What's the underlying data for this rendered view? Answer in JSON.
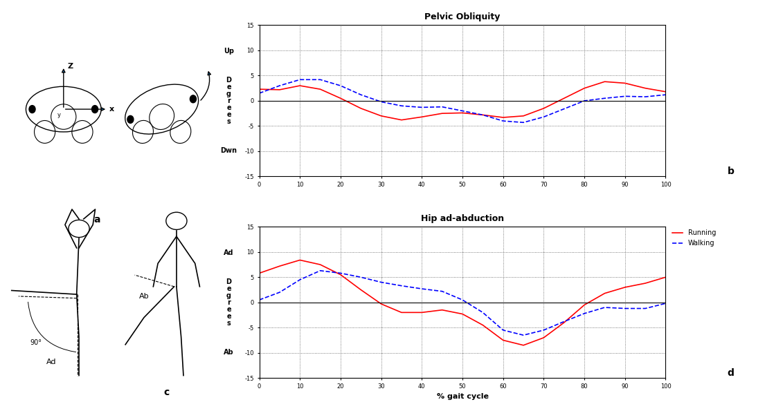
{
  "chart_data": [
    {
      "type": "line",
      "title": "Pelvic Obliquity",
      "panel": "b",
      "ylabel": "Degrees",
      "ylabel_top": "Up",
      "ylabel_bottom": "Dwn",
      "x": [
        0,
        5,
        10,
        15,
        20,
        25,
        30,
        35,
        40,
        45,
        50,
        55,
        60,
        65,
        70,
        75,
        80,
        85,
        90,
        95,
        100
      ],
      "series": [
        {
          "name": "Running",
          "color": "#ff0000",
          "line_style": "solid",
          "values": [
            2.3,
            2.2,
            3.0,
            2.3,
            0.5,
            -1.5,
            -3.0,
            -3.8,
            -3.2,
            -2.5,
            -2.4,
            -2.8,
            -3.3,
            -3.0,
            -1.5,
            0.5,
            2.5,
            3.8,
            3.5,
            2.5,
            1.8
          ]
        },
        {
          "name": "Walking",
          "color": "#0000ff",
          "line_style": "dashed",
          "values": [
            1.5,
            3.0,
            4.2,
            4.2,
            3.0,
            1.2,
            -0.2,
            -1.0,
            -1.3,
            -1.2,
            -2.0,
            -2.8,
            -4.0,
            -4.3,
            -3.2,
            -1.6,
            0.0,
            0.5,
            0.9,
            0.8,
            1.2
          ]
        }
      ],
      "xlim": [
        0,
        100
      ],
      "xticks": [
        0,
        10,
        20,
        30,
        40,
        50,
        60,
        70,
        80,
        90,
        100
      ],
      "ylim": [
        -15,
        15
      ],
      "yticks": [
        -15,
        -10,
        -5,
        0,
        5,
        10,
        15
      ],
      "grid": true
    },
    {
      "type": "line",
      "title": "Hip ad-abduction",
      "panel": "d",
      "xlabel": "% gait cycle",
      "ylabel": "Degrees",
      "ylabel_top": "Ad",
      "ylabel_bottom": "Ab",
      "x": [
        0,
        5,
        10,
        15,
        20,
        25,
        30,
        35,
        40,
        45,
        50,
        55,
        60,
        65,
        70,
        75,
        80,
        85,
        90,
        95,
        100
      ],
      "series": [
        {
          "name": "Running",
          "color": "#ff0000",
          "line_style": "solid",
          "values": [
            5.8,
            7.2,
            8.4,
            7.5,
            5.5,
            2.5,
            -0.3,
            -2.0,
            -2.0,
            -1.5,
            -2.3,
            -4.5,
            -7.5,
            -8.5,
            -7.0,
            -4.0,
            -0.5,
            1.8,
            3.0,
            3.8,
            5.0
          ]
        },
        {
          "name": "Walking",
          "color": "#0000ff",
          "line_style": "dashed",
          "values": [
            0.5,
            2.0,
            4.5,
            6.3,
            5.8,
            5.0,
            4.0,
            3.3,
            2.7,
            2.2,
            0.5,
            -2.0,
            -5.5,
            -6.5,
            -5.5,
            -3.8,
            -2.2,
            -1.0,
            -1.2,
            -1.2,
            -0.2
          ]
        }
      ],
      "xlim": [
        0,
        100
      ],
      "xticks": [
        0,
        10,
        20,
        30,
        40,
        50,
        60,
        70,
        80,
        90,
        100
      ],
      "ylim": [
        -15,
        15
      ],
      "yticks": [
        -15,
        -10,
        -5,
        0,
        5,
        10,
        15
      ],
      "grid": true,
      "legend": "upper right"
    }
  ],
  "illustrations": [
    {
      "panel": "a",
      "axis_labels": [
        "Z",
        "x",
        "y"
      ]
    },
    {
      "panel": "c",
      "angle_label": "90°",
      "left_label": "Ad",
      "right_label": "Ab"
    }
  ]
}
